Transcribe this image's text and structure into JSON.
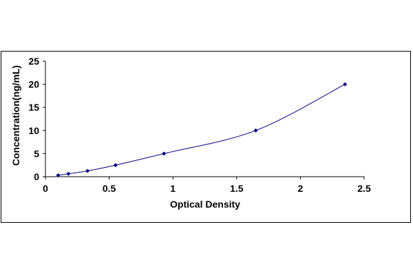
{
  "chart_data": {
    "type": "scatter",
    "title": "",
    "xlabel": "Optical Density",
    "ylabel": "Concentration(ng/mL)",
    "xlim": [
      0,
      2.5
    ],
    "ylim": [
      0,
      25
    ],
    "x_ticks": [
      "0",
      "0.5",
      "1",
      "1.5",
      "2",
      "2.5"
    ],
    "y_ticks": [
      "0",
      "5",
      "10",
      "15",
      "20",
      "25"
    ],
    "grid": false,
    "legend": "none",
    "series": [
      {
        "x": [
          0.1,
          0.18,
          0.33,
          0.55,
          0.93,
          1.65,
          2.35
        ],
        "y": [
          0.31,
          0.63,
          1.25,
          2.5,
          5,
          10,
          20
        ],
        "marker": "diamond",
        "curve": "smooth",
        "color": "#000080"
      }
    ]
  }
}
